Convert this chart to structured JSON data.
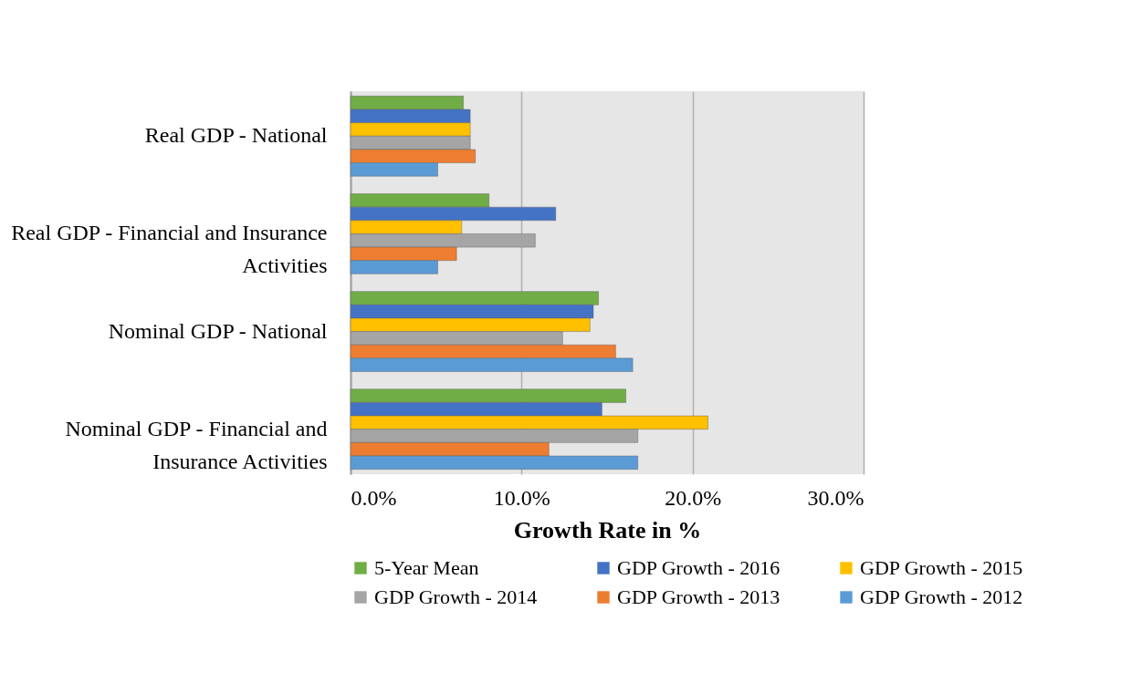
{
  "chart_data": {
    "type": "bar",
    "orientation": "horizontal",
    "xlabel": "Growth Rate in %",
    "categories": [
      "Real GDP - National",
      "Real GDP - Financial and Insurance Activities",
      "Nominal GDP - National",
      "Nominal GDP - Financial and Insurance Activities"
    ],
    "series": [
      {
        "name": "5-Year Mean",
        "color": "#70ad47",
        "values": [
          6.6,
          8.1,
          14.5,
          16.1
        ]
      },
      {
        "name": "GDP Growth - 2016",
        "color": "#4472c4",
        "values": [
          7.0,
          12.0,
          14.2,
          14.7
        ]
      },
      {
        "name": "GDP Growth - 2015",
        "color": "#ffc000",
        "values": [
          7.0,
          6.5,
          14.0,
          20.9
        ]
      },
      {
        "name": "GDP Growth - 2014",
        "color": "#a5a5a5",
        "values": [
          7.0,
          10.8,
          12.4,
          16.8
        ]
      },
      {
        "name": "GDP Growth - 2013",
        "color": "#ed7d31",
        "values": [
          7.3,
          6.2,
          15.5,
          11.6
        ]
      },
      {
        "name": "GDP Growth - 2012",
        "color": "#5b9bd5",
        "values": [
          5.1,
          5.1,
          16.5,
          16.8
        ]
      }
    ],
    "xlim": [
      0,
      30
    ],
    "xticks": [
      {
        "value": 0,
        "label": "0.0%"
      },
      {
        "value": 10,
        "label": "10.0%"
      },
      {
        "value": 20,
        "label": "20.0%"
      },
      {
        "value": 30,
        "label": "30.0%"
      }
    ],
    "grid": "x",
    "legend": "bottom"
  }
}
